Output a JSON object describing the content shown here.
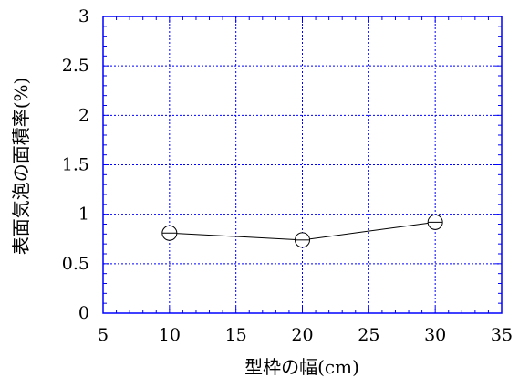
{
  "chart_data": {
    "type": "line",
    "title": "",
    "xlabel": "型枠の幅(cm)",
    "ylabel": "表面気泡の面積率(%)",
    "xlim": [
      5,
      35
    ],
    "ylim": [
      0,
      3
    ],
    "xticks": [
      "5",
      "10",
      "15",
      "20",
      "25",
      "30",
      "35"
    ],
    "yticks": [
      "0",
      "0.5",
      "1",
      "1.5",
      "2",
      "2.5",
      "3"
    ],
    "grid": true,
    "series": [
      {
        "x": [
          10,
          20,
          30
        ],
        "y": [
          0.81,
          0.74,
          0.92
        ]
      }
    ],
    "colors": {
      "grid": "#0000ff",
      "frame": "#0000ff",
      "line": "#000000",
      "marker": "#000000"
    }
  }
}
